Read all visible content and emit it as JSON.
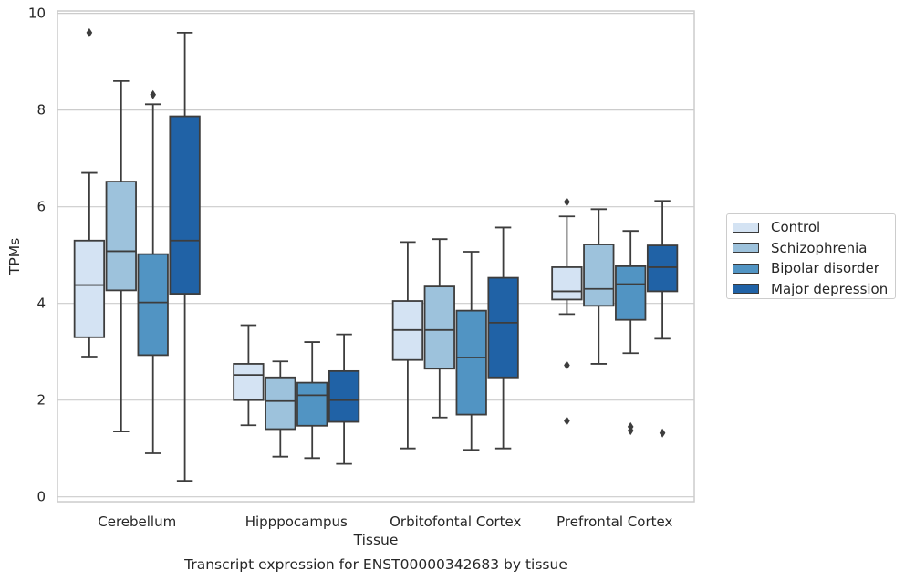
{
  "chart_data": {
    "type": "boxplot",
    "title": "Transcript expression for ENST00000342683 by tissue",
    "xlabel": "Tissue",
    "ylabel": "TPMs",
    "ylim": [
      -0.1,
      10.05
    ],
    "yticks": [
      0,
      2,
      4,
      6,
      8,
      10
    ],
    "grid": true,
    "legend_position": "right",
    "categories": [
      "Cerebellum",
      "Hipppocampus",
      "Orbitofontal Cortex",
      "Prefrontal Cortex"
    ],
    "series": [
      {
        "name": "Control",
        "color": "#d4e3f3",
        "boxes": [
          {
            "whislo": 2.9,
            "q1": 3.3,
            "med": 4.38,
            "q3": 5.3,
            "whishi": 6.7,
            "fliers": [
              9.6
            ]
          },
          {
            "whislo": 1.48,
            "q1": 2.0,
            "med": 2.52,
            "q3": 2.75,
            "whishi": 3.55,
            "fliers": []
          },
          {
            "whislo": 1.0,
            "q1": 2.83,
            "med": 3.45,
            "q3": 4.05,
            "whishi": 5.27,
            "fliers": []
          },
          {
            "whislo": 3.78,
            "q1": 4.08,
            "med": 4.25,
            "q3": 4.75,
            "whishi": 5.8,
            "fliers": [
              6.1,
              2.72,
              1.57
            ]
          }
        ]
      },
      {
        "name": "Schizophrenia",
        "color": "#9dc2dc",
        "boxes": [
          {
            "whislo": 1.35,
            "q1": 4.27,
            "med": 5.08,
            "q3": 6.52,
            "whishi": 8.6,
            "fliers": []
          },
          {
            "whislo": 0.83,
            "q1": 1.4,
            "med": 1.98,
            "q3": 2.47,
            "whishi": 2.8,
            "fliers": []
          },
          {
            "whislo": 1.64,
            "q1": 2.65,
            "med": 3.45,
            "q3": 4.35,
            "whishi": 5.33,
            "fliers": []
          },
          {
            "whislo": 2.75,
            "q1": 3.95,
            "med": 4.3,
            "q3": 5.22,
            "whishi": 5.95,
            "fliers": []
          }
        ]
      },
      {
        "name": "Bipolar disorder",
        "color": "#5194c3",
        "boxes": [
          {
            "whislo": 0.9,
            "q1": 2.93,
            "med": 4.02,
            "q3": 5.02,
            "whishi": 8.12,
            "fliers": [
              8.32
            ]
          },
          {
            "whislo": 0.8,
            "q1": 1.47,
            "med": 2.1,
            "q3": 2.36,
            "whishi": 3.2,
            "fliers": []
          },
          {
            "whislo": 0.97,
            "q1": 1.7,
            "med": 2.88,
            "q3": 3.85,
            "whishi": 5.07,
            "fliers": []
          },
          {
            "whislo": 2.97,
            "q1": 3.66,
            "med": 4.4,
            "q3": 4.77,
            "whishi": 5.5,
            "fliers": [
              1.45,
              1.37
            ]
          }
        ]
      },
      {
        "name": "Major depression",
        "color": "#2062a6",
        "boxes": [
          {
            "whislo": 0.33,
            "q1": 4.2,
            "med": 5.3,
            "q3": 7.87,
            "whishi": 9.6,
            "fliers": []
          },
          {
            "whislo": 0.68,
            "q1": 1.55,
            "med": 2.0,
            "q3": 2.6,
            "whishi": 3.36,
            "fliers": []
          },
          {
            "whislo": 1.0,
            "q1": 2.47,
            "med": 3.6,
            "q3": 4.53,
            "whishi": 5.57,
            "fliers": []
          },
          {
            "whislo": 3.27,
            "q1": 4.25,
            "med": 4.75,
            "q3": 5.2,
            "whishi": 6.12,
            "fliers": [
              1.32
            ]
          }
        ]
      }
    ]
  }
}
